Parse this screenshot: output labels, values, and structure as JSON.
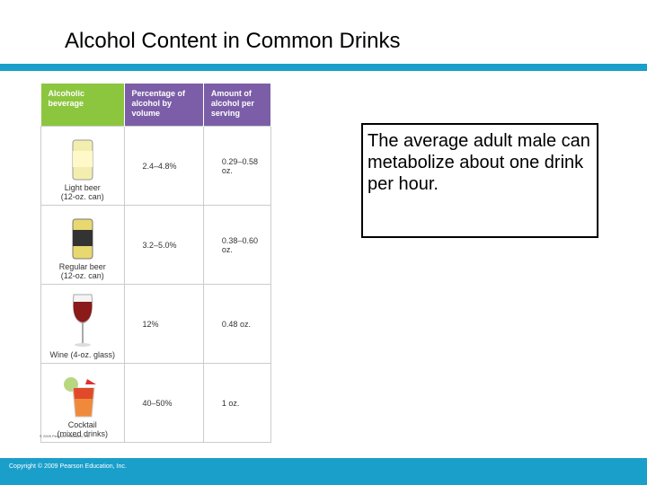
{
  "header": {
    "title": "Alcohol Content in Common Drinks"
  },
  "table": {
    "columns": [
      "Alcoholic beverage",
      "Percentage of alcohol by volume",
      "Amount of alcohol per serving"
    ],
    "rows": [
      [
        [
          "Light beer",
          "(12-oz.  can)"
        ],
        "2.4–4.8%",
        "0.29–0.58 oz."
      ],
      [
        [
          "Regular beer",
          "(12-oz.  can)"
        ],
        "3.2–5.0%",
        "0.38–0.60 oz."
      ],
      [
        [
          "Wine (4-oz. glass)"
        ],
        "12%",
        "0.48 oz."
      ],
      [
        [
          "Cocktail",
          "(mixed drinks)"
        ],
        "40–50%",
        "1 oz."
      ]
    ],
    "credit": "© 2009 Pearson Education, Inc."
  },
  "callout": "The average adult male can metabolize about one drink per hour.",
  "footer": "Copyright © 2009 Pearson Education, Inc."
}
